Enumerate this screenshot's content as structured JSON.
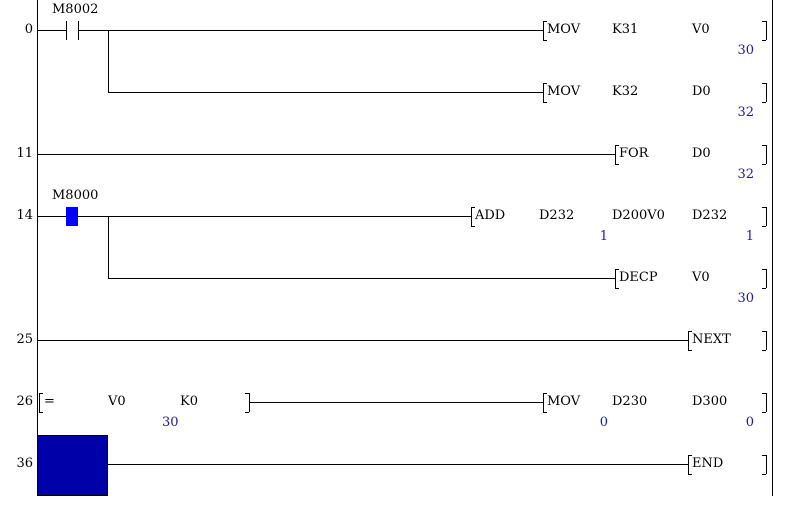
{
  "colors": {
    "rail": "#000000",
    "value": "#1a1aa8",
    "active_contact": "#0000ff",
    "cursor": "#0000a8"
  },
  "rungs": [
    {
      "step": "0",
      "contact": "M8002",
      "contact_active": false,
      "instructions": [
        {
          "op": "MOV",
          "args": [
            "K31",
            "V0"
          ],
          "values": [
            "",
            "30"
          ]
        },
        {
          "op": "MOV",
          "args": [
            "K32",
            "D0"
          ],
          "values": [
            "",
            "32"
          ]
        }
      ]
    },
    {
      "step": "11",
      "instructions": [
        {
          "op": "FOR",
          "args": [
            "D0"
          ],
          "values": [
            "32"
          ]
        }
      ]
    },
    {
      "step": "14",
      "contact": "M8000",
      "contact_active": true,
      "instructions": [
        {
          "op": "ADD",
          "args": [
            "D232",
            "D200V0",
            "D232"
          ],
          "values": [
            "",
            "1",
            "1"
          ]
        },
        {
          "op": "DECP",
          "args": [
            "V0"
          ],
          "values": [
            "30"
          ]
        }
      ]
    },
    {
      "step": "25",
      "instructions": [
        {
          "op": "NEXT",
          "args": [],
          "values": []
        }
      ]
    },
    {
      "step": "26",
      "compare": {
        "op": "=",
        "args": [
          "V0",
          "K0"
        ],
        "values": [
          "30",
          ""
        ]
      },
      "instructions": [
        {
          "op": "MOV",
          "args": [
            "D230",
            "D300"
          ],
          "values": [
            "0",
            "0"
          ]
        }
      ]
    },
    {
      "step": "36",
      "cursor": true,
      "instructions": [
        {
          "op": "END",
          "args": [],
          "values": []
        }
      ]
    }
  ]
}
